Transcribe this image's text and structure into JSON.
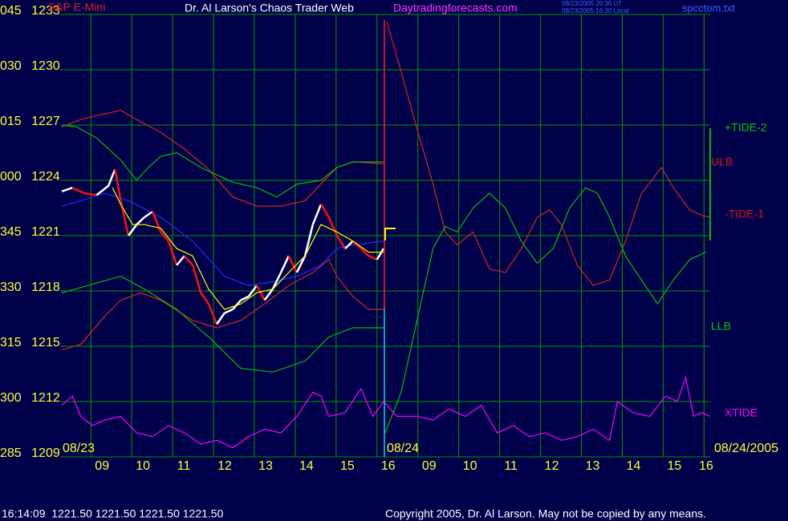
{
  "chart_data": {
    "type": "line",
    "instrument": "S&P E-Mini",
    "title": "Dr. Al Larson's Chaos Trader Web",
    "website": "Daytradingforecasts.com",
    "timestamps": [
      "08/23/2005 20:30 UT",
      "08/23/2005 16:30 Local"
    ],
    "filename": "spcctom.txt",
    "date_labels": [
      "08/23",
      "08/24",
      "08/24/2005"
    ],
    "annotations": [
      {
        "text": "+TIDE-2",
        "color": "#00cc00"
      },
      {
        "text": "ULB",
        "color": "#e01010"
      },
      {
        "text": "-TIDE-1",
        "color": "#e01010"
      },
      {
        "text": "LLB",
        "color": "#00cc00"
      },
      {
        "text": "XTIDE",
        "color": "#ff00ff"
      }
    ],
    "status_line": "16:14:09  1221.50 1221.50 1221.50 1221.50",
    "copyright": "Copyright 2005, Dr. Al Larson. May not be copied by any means.",
    "grid": true,
    "grid_color": "#009a00",
    "xlim": [
      -0.75,
      15.15
    ],
    "xticks": [
      {
        "value": 0,
        "label": "09"
      },
      {
        "value": 1,
        "label": "10"
      },
      {
        "value": 2,
        "label": "11"
      },
      {
        "value": 3,
        "label": "12"
      },
      {
        "value": 4,
        "label": "13"
      },
      {
        "value": 5,
        "label": "14"
      },
      {
        "value": 6,
        "label": "15"
      },
      {
        "value": 7,
        "label": "16"
      },
      {
        "value": 8,
        "label": "09"
      },
      {
        "value": 9,
        "label": "10"
      },
      {
        "value": 10,
        "label": "11"
      },
      {
        "value": 11,
        "label": "12"
      },
      {
        "value": 12,
        "label": "13"
      },
      {
        "value": 13,
        "label": "14"
      },
      {
        "value": 14,
        "label": "15"
      },
      {
        "value": 15,
        "label": "16"
      }
    ],
    "ylim": [
      1209,
      1233
    ],
    "yticks": [
      {
        "value": 1233,
        "label": "045 1233"
      },
      {
        "value": 1230,
        "label": "030 1230"
      },
      {
        "value": 1227,
        "label": "015 1227"
      },
      {
        "value": 1224,
        "label": "000 1224"
      },
      {
        "value": 1221,
        "label": "345 1221"
      },
      {
        "value": 1218,
        "label": "330 1218"
      },
      {
        "value": 1215,
        "label": "315 1215"
      },
      {
        "value": 1212,
        "label": "300 1212"
      },
      {
        "value": 1209,
        "label": "285 1209"
      }
    ],
    "series": [
      {
        "color": "#e02020",
        "x": [
          -0.71,
          -0.25,
          0.33,
          0.73,
          1.12,
          1.71,
          2.29,
          2.88,
          3.47,
          4.06,
          4.65,
          5.24,
          5.63,
          6.02,
          6.41,
          7.16
        ],
        "values": [
          1226.9,
          1227.3,
          1227.6,
          1227.8,
          1227.3,
          1226.6,
          1225.7,
          1224.6,
          1223.1,
          1222.6,
          1222.6,
          1222.9,
          1223.8,
          1224.7,
          1225.0,
          1224.9
        ]
      },
      {
        "color": "#e02020",
        "x": [
          -0.71,
          -0.25,
          0.33,
          0.73,
          1.22,
          1.71,
          2.49,
          3.08,
          3.67,
          4.25,
          4.84,
          5.43,
          5.82,
          6.02,
          6.41,
          6.8,
          7.16
        ],
        "values": [
          1214.8,
          1215.1,
          1216.6,
          1217.5,
          1217.9,
          1217.5,
          1216.4,
          1216.0,
          1216.4,
          1217.3,
          1218.3,
          1219.0,
          1219.7,
          1218.8,
          1217.7,
          1217.0,
          1217.0
        ]
      },
      {
        "color": "#00c000",
        "x": [
          -0.71,
          -0.35,
          0.14,
          0.73,
          1.12,
          1.41,
          1.71,
          2.1,
          2.69,
          3.47,
          4.06,
          4.55,
          5.04,
          5.63,
          6.02,
          6.41,
          7.16
        ],
        "values": [
          1227.0,
          1226.9,
          1226.3,
          1225.1,
          1224.0,
          1224.7,
          1225.3,
          1225.5,
          1224.7,
          1223.9,
          1223.6,
          1223.1,
          1223.8,
          1224.0,
          1224.7,
          1225.0,
          1225.0
        ]
      },
      {
        "color": "#00c000",
        "x": [
          -0.71,
          -0.06,
          0.73,
          1.31,
          2.1,
          2.88,
          3.67,
          4.45,
          5.24,
          5.82,
          6.41,
          7.16
        ],
        "values": [
          1217.9,
          1218.3,
          1218.8,
          1218.1,
          1217.0,
          1215.5,
          1213.8,
          1213.6,
          1214.2,
          1215.5,
          1216.0,
          1216.0
        ]
      },
      {
        "color": "#2828ff",
        "x": [
          -0.71,
          -0.25,
          0.33,
          0.92,
          1.71,
          2.49,
          3.27,
          3.86,
          4.45,
          5.04,
          5.63,
          6.02,
          6.41,
          7.16
        ],
        "values": [
          1222.6,
          1222.9,
          1223.3,
          1222.9,
          1222.0,
          1220.7,
          1218.8,
          1218.3,
          1218.5,
          1218.8,
          1219.4,
          1220.3,
          1220.5,
          1220.7
        ]
      },
      {
        "color": "#ffffff",
        "down_color": "#ff1010",
        "x": [
          -0.71,
          -0.45,
          -0.16,
          0.14,
          0.43,
          0.59,
          0.73,
          0.92,
          1.12,
          1.31,
          1.51,
          1.71,
          1.9,
          2.1,
          2.29,
          2.49,
          2.69,
          2.88,
          3.08,
          3.27,
          3.47,
          3.67,
          3.86,
          4.06,
          4.25,
          4.45,
          4.65,
          4.84,
          5.04,
          5.24,
          5.43,
          5.63,
          5.82,
          6.02,
          6.22,
          6.41,
          6.61,
          6.8,
          7.0,
          7.16
        ],
        "values": [
          1223.4,
          1223.6,
          1223.3,
          1223.2,
          1223.7,
          1224.6,
          1222.9,
          1221.0,
          1221.6,
          1222.0,
          1222.3,
          1221.2,
          1220.7,
          1219.4,
          1219.9,
          1219.4,
          1217.9,
          1217.3,
          1216.2,
          1216.8,
          1217.0,
          1217.5,
          1217.7,
          1218.3,
          1217.5,
          1218.1,
          1219.0,
          1219.9,
          1219.0,
          1219.9,
          1221.6,
          1222.7,
          1222.0,
          1221.0,
          1220.3,
          1220.7,
          1220.3,
          1219.9,
          1219.7,
          1220.3
        ]
      },
      {
        "color": "#ffff00",
        "x": [
          0.53,
          0.73,
          1.02,
          1.31,
          1.71,
          2.1,
          2.49,
          2.88,
          3.27,
          3.67,
          4.06,
          4.45,
          4.84,
          5.24,
          5.63,
          6.02,
          6.41,
          6.8,
          7.16
        ],
        "values": [
          1223.6,
          1222.7,
          1221.6,
          1221.6,
          1221.4,
          1220.3,
          1219.9,
          1218.1,
          1217.0,
          1217.3,
          1217.9,
          1218.1,
          1219.0,
          1219.9,
          1221.6,
          1221.2,
          1220.7,
          1220.1,
          1220.1
        ]
      },
      {
        "color": "#e02020",
        "x": [
          7.24,
          7.59,
          7.98,
          8.37,
          8.67,
          8.96,
          9.35,
          9.75,
          10.14,
          10.53,
          10.92,
          11.22,
          11.51,
          11.9,
          12.29,
          12.69,
          13.08,
          13.47,
          13.96,
          14.25,
          14.65,
          14.94,
          15.14
        ],
        "values": [
          1232.6,
          1229.9,
          1226.8,
          1223.8,
          1221.2,
          1220.5,
          1221.2,
          1219.2,
          1219.0,
          1220.3,
          1222.0,
          1222.4,
          1221.6,
          1219.4,
          1218.3,
          1218.6,
          1220.7,
          1223.3,
          1224.7,
          1223.6,
          1222.4,
          1222.1,
          1222.0
        ]
      },
      {
        "color": "#00c000",
        "x": [
          7.2,
          7.59,
          7.98,
          8.37,
          8.67,
          8.96,
          9.35,
          9.75,
          10.14,
          10.53,
          10.92,
          11.31,
          11.71,
          12.1,
          12.39,
          12.69,
          13.08,
          13.47,
          13.86,
          14.25,
          14.65,
          15.04
        ],
        "values": [
          1210.3,
          1212.5,
          1216.4,
          1220.3,
          1221.5,
          1221.2,
          1222.5,
          1223.3,
          1222.5,
          1220.7,
          1219.5,
          1220.3,
          1222.5,
          1223.6,
          1223.3,
          1222.0,
          1219.9,
          1218.6,
          1217.3,
          1218.6,
          1219.7,
          1220.1
        ]
      },
      {
        "color": "#ff00ff",
        "x": [
          -0.71,
          -0.45,
          -0.25,
          0.04,
          0.33,
          0.73,
          1.12,
          1.51,
          1.9,
          2.29,
          2.69,
          3.08,
          3.47,
          3.86,
          4.25,
          4.65,
          5.04,
          5.43,
          5.63,
          5.82,
          6.22,
          6.61,
          6.9,
          7.16,
          7.49,
          7.98,
          8.37,
          8.76,
          9.16,
          9.55,
          9.94,
          10.33,
          10.73,
          11.12,
          11.51,
          11.9,
          12.29,
          12.69,
          12.88,
          13.27,
          13.67,
          14.06,
          14.35,
          14.55,
          14.75,
          14.94,
          15.14
        ],
        "values": [
          1211.8,
          1212.3,
          1211.2,
          1210.7,
          1211.0,
          1211.2,
          1210.3,
          1210.1,
          1210.7,
          1210.3,
          1209.7,
          1209.9,
          1209.5,
          1210.1,
          1210.5,
          1210.3,
          1211.2,
          1212.5,
          1212.3,
          1211.2,
          1211.4,
          1212.7,
          1211.2,
          1212.0,
          1211.2,
          1211.2,
          1211.0,
          1211.6,
          1211.2,
          1211.8,
          1210.3,
          1210.7,
          1210.1,
          1210.3,
          1209.9,
          1210.1,
          1210.5,
          1209.9,
          1212.0,
          1211.4,
          1211.2,
          1212.3,
          1212.0,
          1213.3,
          1211.2,
          1211.4,
          1211.2
        ]
      }
    ]
  }
}
